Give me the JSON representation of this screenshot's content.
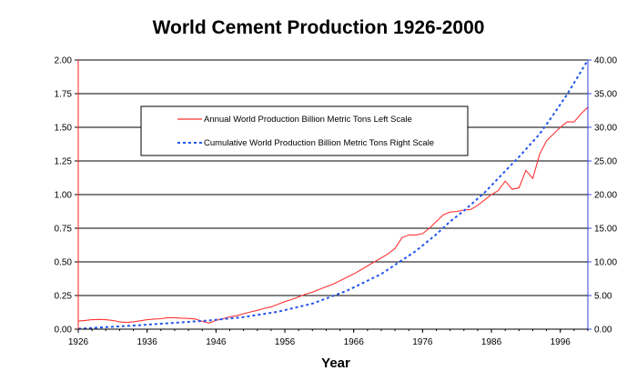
{
  "chart_data": {
    "type": "line",
    "title": "World Cement Production 1926-2000",
    "xlabel": "Year",
    "ylabel_left": "",
    "ylabel_right": "",
    "x_ticks": [
      "1926",
      "1936",
      "1946",
      "1956",
      "1966",
      "1976",
      "1986",
      "1996"
    ],
    "y_left_ticks": [
      "0.00",
      "0.25",
      "0.50",
      "0.75",
      "1.00",
      "1.25",
      "1.50",
      "1.75",
      "2.00"
    ],
    "y_right_ticks": [
      "0.00",
      "5.00",
      "10.00",
      "15.00",
      "20.00",
      "25.00",
      "30.00",
      "35.00",
      "40.00"
    ],
    "xlim": [
      1926,
      2000
    ],
    "ylim_left": [
      0,
      2
    ],
    "ylim_right": [
      0,
      40
    ],
    "grid": "horizontal",
    "legend_position": "upper-left",
    "colors": {
      "annual": "#ff3333",
      "cumulative": "#2255ee",
      "right_axis": "#3344dd",
      "left_axis": "#ff2222"
    },
    "series": [
      {
        "name": "Annual World Production Billion Metric Tons Left Scale",
        "axis": "left",
        "style": "solid",
        "x": [
          1926,
          1927,
          1928,
          1929,
          1930,
          1931,
          1932,
          1933,
          1934,
          1935,
          1936,
          1937,
          1938,
          1939,
          1940,
          1941,
          1942,
          1943,
          1944,
          1945,
          1946,
          1947,
          1948,
          1949,
          1950,
          1951,
          1952,
          1953,
          1954,
          1955,
          1956,
          1957,
          1958,
          1959,
          1960,
          1961,
          1962,
          1963,
          1964,
          1965,
          1966,
          1967,
          1968,
          1969,
          1970,
          1971,
          1972,
          1973,
          1974,
          1975,
          1976,
          1977,
          1978,
          1979,
          1980,
          1981,
          1982,
          1983,
          1984,
          1985,
          1986,
          1987,
          1988,
          1989,
          1990,
          1991,
          1992,
          1993,
          1994,
          1995,
          1996,
          1997,
          1998,
          1999,
          2000
        ],
        "values": [
          0.06,
          0.065,
          0.07,
          0.072,
          0.07,
          0.065,
          0.055,
          0.05,
          0.055,
          0.062,
          0.07,
          0.075,
          0.078,
          0.085,
          0.085,
          0.082,
          0.08,
          0.076,
          0.058,
          0.045,
          0.065,
          0.078,
          0.092,
          0.1,
          0.115,
          0.128,
          0.14,
          0.155,
          0.165,
          0.185,
          0.205,
          0.22,
          0.24,
          0.26,
          0.275,
          0.295,
          0.315,
          0.335,
          0.36,
          0.385,
          0.41,
          0.44,
          0.47,
          0.5,
          0.53,
          0.56,
          0.6,
          0.68,
          0.7,
          0.7,
          0.71,
          0.75,
          0.8,
          0.85,
          0.87,
          0.875,
          0.885,
          0.89,
          0.92,
          0.96,
          1.0,
          1.03,
          1.1,
          1.04,
          1.05,
          1.18,
          1.12,
          1.3,
          1.4,
          1.45,
          1.5,
          1.54,
          1.54,
          1.6,
          1.65
        ]
      },
      {
        "name": "Cumulative World Production  Billion Metric Tons  Right Scale",
        "axis": "right",
        "style": "dashed",
        "x": [
          1926,
          1930,
          1935,
          1940,
          1945,
          1950,
          1955,
          1960,
          1965,
          1970,
          1975,
          1978,
          1980,
          1982,
          1985,
          1988,
          1990,
          1993,
          1995,
          1997,
          2000
        ],
        "values": [
          0.06,
          0.3,
          0.6,
          0.95,
          1.3,
          1.8,
          2.6,
          3.8,
          5.7,
          8.2,
          11.6,
          14.1,
          16.0,
          17.6,
          20.3,
          23.5,
          25.6,
          29.0,
          31.9,
          34.9,
          40.0
        ]
      }
    ]
  }
}
